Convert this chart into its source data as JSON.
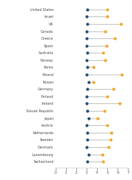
{
  "countries": [
    "United States",
    "Israel",
    "UK",
    "Canada",
    "Greece",
    "Spain",
    "Australia",
    "Norway",
    "Korea",
    "Poland",
    "Taiwan",
    "Germany",
    "Finland",
    "Ireland",
    "Slovak Republic",
    "Japan",
    "Austria",
    "Netherlands",
    "Sweden",
    "Denmark",
    "Luxembourg",
    "Switzerland"
  ],
  "blue_vals": [
    3.1,
    3.0,
    3.1,
    3.0,
    3.0,
    3.0,
    3.1,
    3.0,
    3.1,
    3.0,
    3.2,
    3.1,
    3.0,
    3.0,
    3.1,
    3.2,
    3.0,
    3.1,
    3.1,
    3.0,
    3.2,
    3.1
  ],
  "orange_vals": [
    5.0,
    5.0,
    6.3,
    4.8,
    5.7,
    4.9,
    4.6,
    4.8,
    3.7,
    6.4,
    3.7,
    5.6,
    5.0,
    6.2,
    4.7,
    4.1,
    5.0,
    5.4,
    5.3,
    5.1,
    4.5,
    4.6
  ],
  "blue_color": "#1f4e79",
  "orange_color": "#f5a623",
  "line_color": "#bbbbbb",
  "bg_color": "#ffffff",
  "xlim": [
    0,
    7
  ],
  "xticks": [
    0,
    1,
    2,
    3,
    4,
    5,
    6,
    7
  ],
  "tick_fontsize": 4.5,
  "label_fontsize": 3.6
}
